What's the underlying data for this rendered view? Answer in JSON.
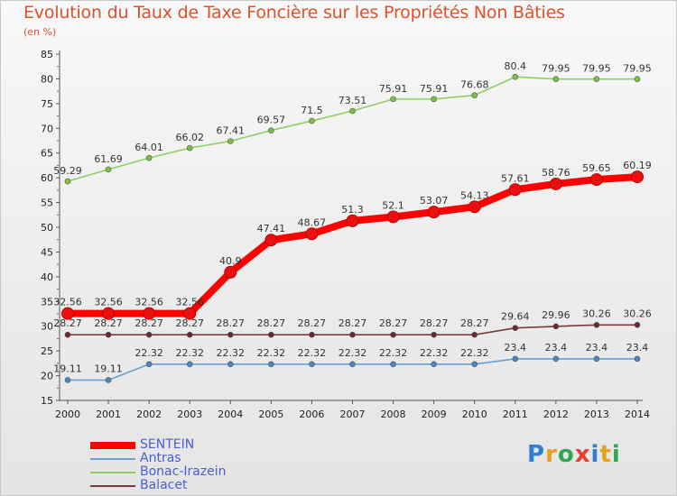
{
  "header": {
    "title": "Evolution du Taux de Taxe Foncière sur les Propriétés Non Bâties",
    "unit": "(en %)"
  },
  "logo": {
    "text": "Proxiti"
  },
  "chart_data": {
    "type": "line",
    "title": "Evolution du Taux de Taxe Foncière sur les Propriétés Non Bâties",
    "ylabel": "(en %)",
    "xlabel": "",
    "ylim": [
      15,
      85
    ],
    "yticks": [
      15,
      20,
      25,
      30,
      35,
      40,
      45,
      50,
      55,
      60,
      65,
      70,
      75,
      80,
      85
    ],
    "grid": false,
    "legend": "bottom-left",
    "x": [
      "2000",
      "2001",
      "2002",
      "2003",
      "2004",
      "2005",
      "2006",
      "2007",
      "2008",
      "2009",
      "2010",
      "2011",
      "2012",
      "2013",
      "2014"
    ],
    "series": [
      {
        "name": "SENTEIN",
        "color": "#ff0000",
        "marker": "#e81010",
        "values": [
          32.56,
          32.56,
          32.56,
          32.56,
          40.9,
          47.41,
          48.67,
          51.3,
          52.1,
          53.07,
          54.13,
          57.61,
          58.76,
          59.65,
          60.19
        ],
        "labels": [
          "32.56",
          "32.56",
          "32.56",
          "32.56",
          "40.9",
          "47.41",
          "48.67",
          "51.3",
          "52.1",
          "53.07",
          "54.13",
          "57.61",
          "58.76",
          "59.65",
          "60.19"
        ]
      },
      {
        "name": "Antras",
        "color": "#6a9fcf",
        "marker": "#4a86c0",
        "values": [
          19.11,
          19.11,
          22.32,
          22.32,
          22.32,
          22.32,
          22.32,
          22.32,
          22.32,
          22.32,
          22.32,
          23.4,
          23.4,
          23.4,
          23.4
        ],
        "labels": [
          "19.11",
          "19.11",
          "22.32",
          "22.32",
          "22.32",
          "22.32",
          "22.32",
          "22.32",
          "22.32",
          "22.32",
          "22.32",
          "23.4",
          "23.4",
          "23.4",
          "23.4"
        ]
      },
      {
        "name": "Bonac-Irazein",
        "color": "#8fcf60",
        "marker": "#7ac142",
        "values": [
          59.29,
          61.69,
          64.01,
          66.02,
          67.41,
          69.57,
          71.5,
          73.51,
          75.91,
          75.91,
          76.68,
          80.4,
          79.95,
          79.95,
          79.95
        ],
        "labels": [
          "59.29",
          "61.69",
          "64.01",
          "66.02",
          "67.41",
          "69.57",
          "71.5",
          "73.51",
          "75.91",
          "75.91",
          "76.68",
          "80.4",
          "79.95",
          "79.95",
          "79.95"
        ]
      },
      {
        "name": "Balacet",
        "color": "#7a3a3a",
        "marker": "#6b2a2a",
        "values": [
          28.27,
          28.27,
          28.27,
          28.27,
          28.27,
          28.27,
          28.27,
          28.27,
          28.27,
          28.27,
          28.27,
          29.64,
          29.96,
          30.26,
          30.26
        ],
        "labels": [
          "28.27",
          "28.27",
          "28.27",
          "28.27",
          "28.27",
          "28.27",
          "28.27",
          "28.27",
          "28.27",
          "28.27",
          "28.27",
          "29.64",
          "29.96",
          "30.26",
          "30.26"
        ]
      }
    ]
  }
}
